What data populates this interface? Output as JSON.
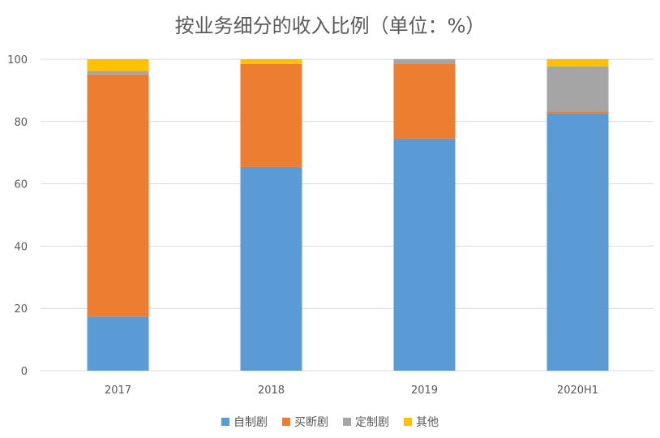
{
  "chart_data": {
    "type": "bar",
    "stacked": true,
    "title": "按业务细分的收入比例（单位：%）",
    "categories": [
      "2017",
      "2018",
      "2019",
      "2020H1"
    ],
    "series": [
      {
        "name": "自制剧",
        "color": "#5B9BD5",
        "values": [
          17.4,
          65.4,
          74.5,
          82.6
        ]
      },
      {
        "name": "买断剧",
        "color": "#ED7D31",
        "values": [
          77.7,
          33.1,
          24.1,
          0.7
        ]
      },
      {
        "name": "定制剧",
        "color": "#A5A5A5",
        "values": [
          1.1,
          0,
          1.4,
          14.4
        ]
      },
      {
        "name": "其他",
        "color": "#FFC000",
        "values": [
          3.8,
          1.5,
          0,
          2.3
        ]
      }
    ],
    "ylim": [
      0,
      100
    ],
    "yticks": [
      "0",
      "20",
      "40",
      "60",
      "80",
      "100"
    ],
    "grid": true,
    "legend": "bottom"
  }
}
